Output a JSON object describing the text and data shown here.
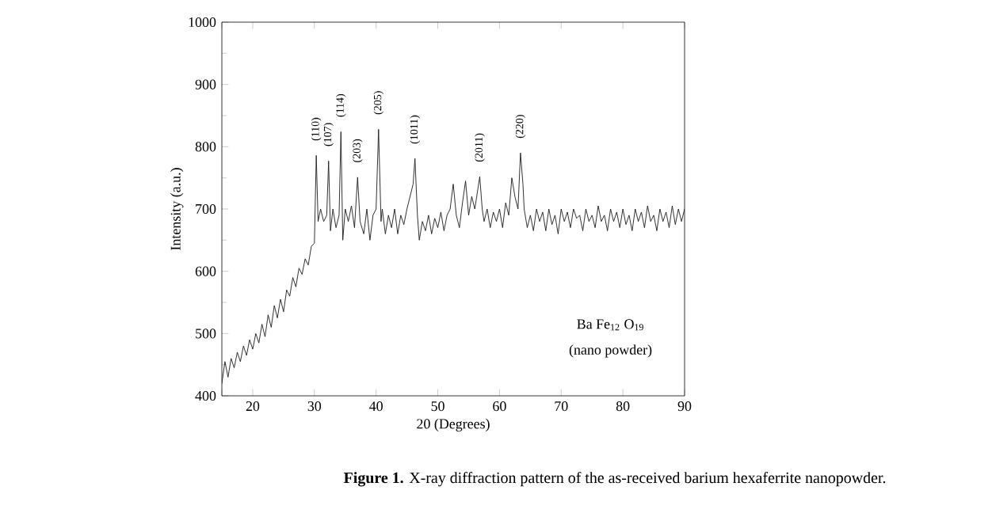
{
  "chart_data": {
    "type": "line",
    "xlabel": "20 (Degrees)",
    "ylabel": "Intensity (a.u.)",
    "xlim": [
      15,
      90
    ],
    "xticks": [
      {
        "value": 15,
        "label": null
      },
      20,
      30,
      40,
      50,
      60,
      70,
      80,
      90
    ],
    "ylim": [
      400,
      1000
    ],
    "yticks": [
      400,
      500,
      600,
      700,
      800,
      900,
      1000
    ],
    "grid": false,
    "marker": "none",
    "line_style": "solid",
    "series": [
      {
        "color": "#1a1a1a",
        "x": [
          15,
          15.5,
          16,
          16.5,
          17,
          17.5,
          18,
          18.5,
          19,
          19.5,
          20,
          20.5,
          21,
          21.5,
          22,
          22.5,
          23,
          23.5,
          24,
          24.5,
          25,
          25.5,
          26,
          26.5,
          27,
          27.5,
          28,
          28.5,
          29,
          29.5,
          30,
          30.3,
          30.6,
          31,
          31.5,
          32,
          32.3,
          32.6,
          33,
          33.5,
          34,
          34.3,
          34.6,
          35,
          35.5,
          36,
          36.5,
          37,
          37.4,
          38,
          38.5,
          39,
          39.5,
          40,
          40.4,
          40.8,
          41,
          41.5,
          42,
          42.5,
          43,
          43.5,
          44,
          44.5,
          45,
          45.5,
          46,
          46.3,
          46.7,
          47,
          47.5,
          48,
          48.5,
          49,
          49.5,
          50,
          50.5,
          51,
          51.5,
          52,
          52.5,
          53,
          53.5,
          54,
          54.5,
          55,
          55.5,
          56,
          56.8,
          57.2,
          57.5,
          58,
          58.5,
          59,
          59.5,
          60,
          60.5,
          61,
          61.5,
          62,
          62.5,
          63,
          63.4,
          63.8,
          64,
          64.5,
          65,
          65.5,
          66,
          66.5,
          67,
          67.5,
          68,
          68.5,
          69,
          69.5,
          70,
          70.5,
          71,
          71.5,
          72,
          72.5,
          73,
          73.5,
          74,
          74.5,
          75,
          75.5,
          76,
          76.5,
          77,
          77.5,
          78,
          78.5,
          79,
          79.5,
          80,
          80.5,
          81,
          81.5,
          82,
          82.5,
          83,
          83.5,
          84,
          84.5,
          85,
          85.5,
          86,
          86.5,
          87,
          87.5,
          88,
          88.5,
          89,
          89.5,
          90
        ],
        "values": [
          420,
          455,
          430,
          460,
          445,
          470,
          455,
          480,
          465,
          490,
          475,
          500,
          485,
          515,
          495,
          530,
          510,
          545,
          525,
          555,
          535,
          570,
          560,
          590,
          575,
          605,
          595,
          620,
          610,
          640,
          645,
          786,
          680,
          700,
          680,
          690,
          777,
          665,
          700,
          670,
          690,
          824,
          650,
          700,
          680,
          705,
          670,
          751,
          680,
          660,
          700,
          650,
          690,
          700,
          828,
          680,
          700,
          660,
          690,
          670,
          700,
          660,
          690,
          675,
          700,
          720,
          740,
          781,
          690,
          650,
          680,
          665,
          690,
          660,
          685,
          670,
          695,
          665,
          690,
          700,
          740,
          690,
          670,
          710,
          745,
          690,
          720,
          700,
          752,
          700,
          680,
          700,
          670,
          695,
          680,
          700,
          670,
          710,
          690,
          750,
          720,
          700,
          790,
          740,
          700,
          670,
          690,
          665,
          700,
          680,
          695,
          665,
          700,
          675,
          690,
          660,
          700,
          680,
          695,
          670,
          700,
          685,
          690,
          665,
          700,
          680,
          690,
          670,
          705,
          680,
          690,
          665,
          700,
          680,
          695,
          670,
          700,
          675,
          690,
          665,
          700,
          680,
          695,
          670,
          705,
          680,
          690,
          665,
          700,
          680,
          695,
          670,
          705,
          675,
          700,
          680,
          700
        ]
      }
    ],
    "annotations": [
      {
        "text": "(110)",
        "x": 30.3,
        "y": 786
      },
      {
        "text": "(107)",
        "x": 32.3,
        "y": 777
      },
      {
        "text": "(114)",
        "x": 34.3,
        "y": 824
      },
      {
        "text": "(203)",
        "x": 37,
        "y": 751
      },
      {
        "text": "(205)",
        "x": 40.4,
        "y": 828
      },
      {
        "text": "(1011)",
        "x": 46.3,
        "y": 781
      },
      {
        "text": "(2011)",
        "x": 56.8,
        "y": 752
      },
      {
        "text": "(220)",
        "x": 63.4,
        "y": 790
      },
      "Ba Fe$_{12}$ O$_{19}$",
      "(nano powder)",
      "**Figure 1.** X-ray diffraction pattern of the as-received barium hexaferrite nanopowder."
    ]
  }
}
